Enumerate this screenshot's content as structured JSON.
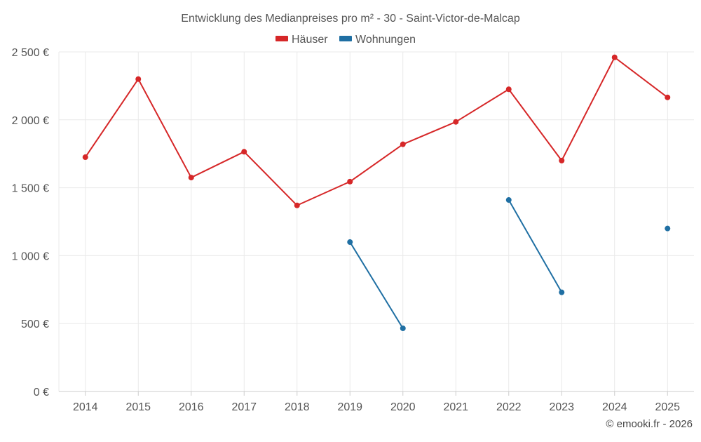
{
  "chart_data": {
    "type": "line",
    "title": "Entwicklung des Medianpreises pro m² - 30 - Saint-Victor-de-Malcap",
    "xlabel": "",
    "ylabel": "",
    "categories": [
      "2014",
      "2015",
      "2016",
      "2017",
      "2018",
      "2019",
      "2020",
      "2021",
      "2022",
      "2023",
      "2024",
      "2025"
    ],
    "ylim": [
      0,
      2500
    ],
    "yticks": [
      0,
      500,
      1000,
      1500,
      2000,
      2500
    ],
    "ytick_labels": [
      "0 €",
      "500 €",
      "1 000 €",
      "1 500 €",
      "2 000 €",
      "2 500 €"
    ],
    "grid": true,
    "legend_position": "top-center",
    "series": [
      {
        "name": "Häuser",
        "color": "#d62728",
        "values": [
          1725,
          2300,
          1575,
          1765,
          1370,
          1545,
          1820,
          1985,
          2225,
          1700,
          2460,
          2165
        ]
      },
      {
        "name": "Wohnungen",
        "color": "#1f6fa3",
        "values": [
          null,
          null,
          null,
          null,
          null,
          1100,
          465,
          null,
          1410,
          730,
          null,
          1200
        ]
      }
    ]
  },
  "credit": "© emooki.fr - 2026"
}
